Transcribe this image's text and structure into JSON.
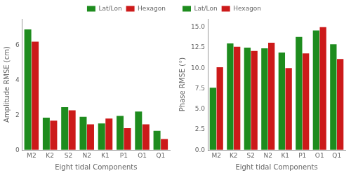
{
  "chart_data": [
    {
      "type": "bar",
      "categories": [
        "M2",
        "K2",
        "S2",
        "N2",
        "K1",
        "P1",
        "O1",
        "Q1"
      ],
      "series": [
        {
          "name": "Lat/Lon",
          "color": "#1e8c1e",
          "values": [
            6.9,
            1.85,
            2.45,
            1.9,
            1.52,
            1.95,
            2.2,
            1.1
          ]
        },
        {
          "name": "Hexagon",
          "color": "#cc1a1a",
          "values": [
            6.2,
            1.68,
            2.27,
            1.47,
            1.8,
            1.25,
            1.47,
            0.63
          ]
        }
      ],
      "xlabel": "Eight tidal Components",
      "ylabel": "Amplitude RMSE (cm)",
      "ylim": [
        0,
        7.5
      ],
      "yticks": [
        0,
        2,
        4,
        6
      ],
      "legend": "upper right",
      "grid": false
    },
    {
      "type": "bar",
      "categories": [
        "M2",
        "K2",
        "S2",
        "N2",
        "K1",
        "P1",
        "O1",
        "Q1"
      ],
      "series": [
        {
          "name": "Lat/Lon",
          "color": "#1e8c1e",
          "values": [
            7.6,
            13.0,
            12.5,
            12.4,
            11.9,
            13.8,
            14.6,
            12.9
          ]
        },
        {
          "name": "Hexagon",
          "color": "#cc1a1a",
          "values": [
            10.1,
            12.6,
            12.1,
            13.1,
            10.0,
            11.8,
            15.0,
            11.1
          ]
        }
      ],
      "xlabel": "Eight tidal Components",
      "ylabel": "Phase RMSE (°)",
      "ylim": [
        0,
        16.0
      ],
      "yticks": [
        {
          "value": 0.0,
          "label": "0.0"
        },
        2.5,
        {
          "value": 5.0,
          "label": "5.0"
        },
        7.5,
        {
          "value": 10.0,
          "label": "10.0"
        },
        12.5,
        {
          "value": 15.0,
          "label": "15.0"
        }
      ],
      "legend": "upper left",
      "grid": false
    }
  ]
}
